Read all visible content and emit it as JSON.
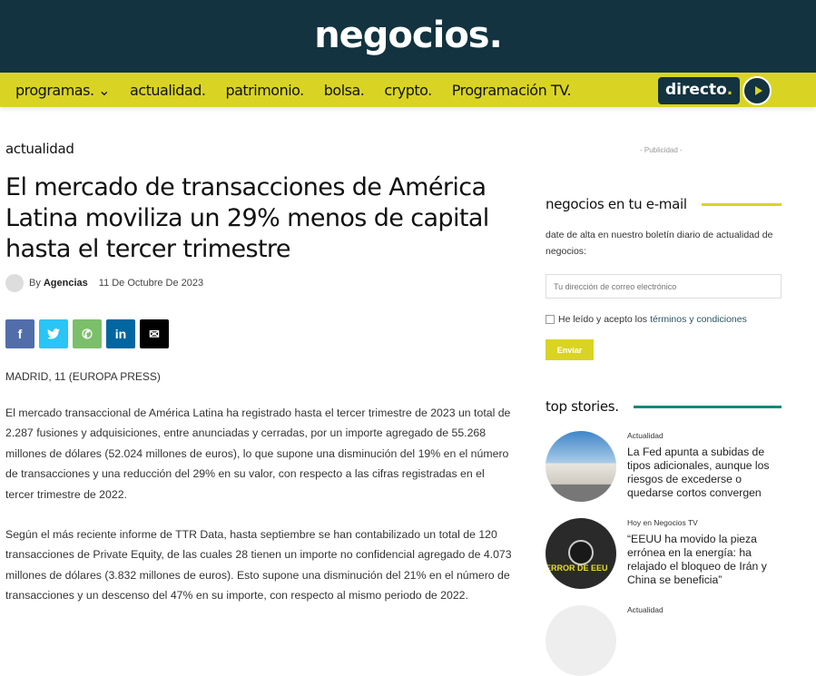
{
  "header": {
    "logo": "negocios."
  },
  "nav": {
    "items": [
      "programas. ⌄",
      "actualidad.",
      "patrimonio.",
      "bolsa.",
      "crypto.",
      "Programación TV."
    ],
    "directo": "directo",
    "directo_dot": "."
  },
  "article": {
    "category": "actualidad",
    "title": "El mercado de transacciones de América Latina moviliza un 29% menos de capital hasta el tercer trimestre",
    "by": "By",
    "author": "Agencias",
    "date": "11 De Octubre De 2023",
    "share": [
      {
        "icon": "facebook-icon",
        "glyph": "f",
        "color": "#516eab"
      },
      {
        "icon": "twitter-icon",
        "glyph": "🐦",
        "color": "#29c5f6"
      },
      {
        "icon": "whatsapp-icon",
        "glyph": "✆",
        "color": "#7bbf6a"
      },
      {
        "icon": "linkedin-icon",
        "glyph": "in",
        "color": "#0266a0"
      },
      {
        "icon": "mail-icon",
        "glyph": "✉",
        "color": "#000000"
      }
    ],
    "dateline": "MADRID, 11 (EUROPA PRESS)",
    "paragraphs": [
      "El mercado transaccional de América Latina ha registrado hasta el tercer trimestre de 2023 un total de 2.287 fusiones y adquisiciones, entre anunciadas y cerradas, por un importe agregado de 55.268 millones de dólares (52.024 millones de euros), lo que supone una disminución del 19% en el número de transacciones y una reducción del 29% en su valor, con respecto a las cifras registradas en el tercer trimestre de 2022.",
      "Según el más reciente informe de TTR Data, hasta septiembre se han contabilizado un total de 120 transacciones de Private Equity, de las cuales 28 tienen un importe no confidencial agregado de 4.073 millones de dólares (3.832 millones de euros). Esto supone una disminución del 21% en el número de transacciones y un descenso del 47% en su importe, con respecto al mismo periodo de 2022."
    ]
  },
  "sidebar": {
    "ad": "- Publicidad -",
    "newsletter": {
      "title": "negocios en tu e-mail",
      "line_color": "#d9d423",
      "desc": "date de alta en nuestro boletín diario de actualidad de negocios:",
      "placeholder": "Tu dirección de correo electrónico",
      "consent": "He leído y acepto los",
      "terms": "términos y condiciones",
      "submit": "Enviar"
    },
    "top_stories": {
      "title": "top stories.",
      "line_color": "#0a8a78",
      "items": [
        {
          "category": "Actualidad",
          "title": "La Fed apunta a subidas de tipos adicionales, aunque los riesgos de excederse o quedarse cortos convergen"
        },
        {
          "category": "Hoy en Negocios TV",
          "title": "“EEUU ha movido la pieza errónea en la energía: ha relajado el bloqueo de Irán y China se beneficia”",
          "thumb_text": "ERROR DE EEU"
        },
        {
          "category": "Actualidad",
          "title": ""
        }
      ]
    }
  }
}
